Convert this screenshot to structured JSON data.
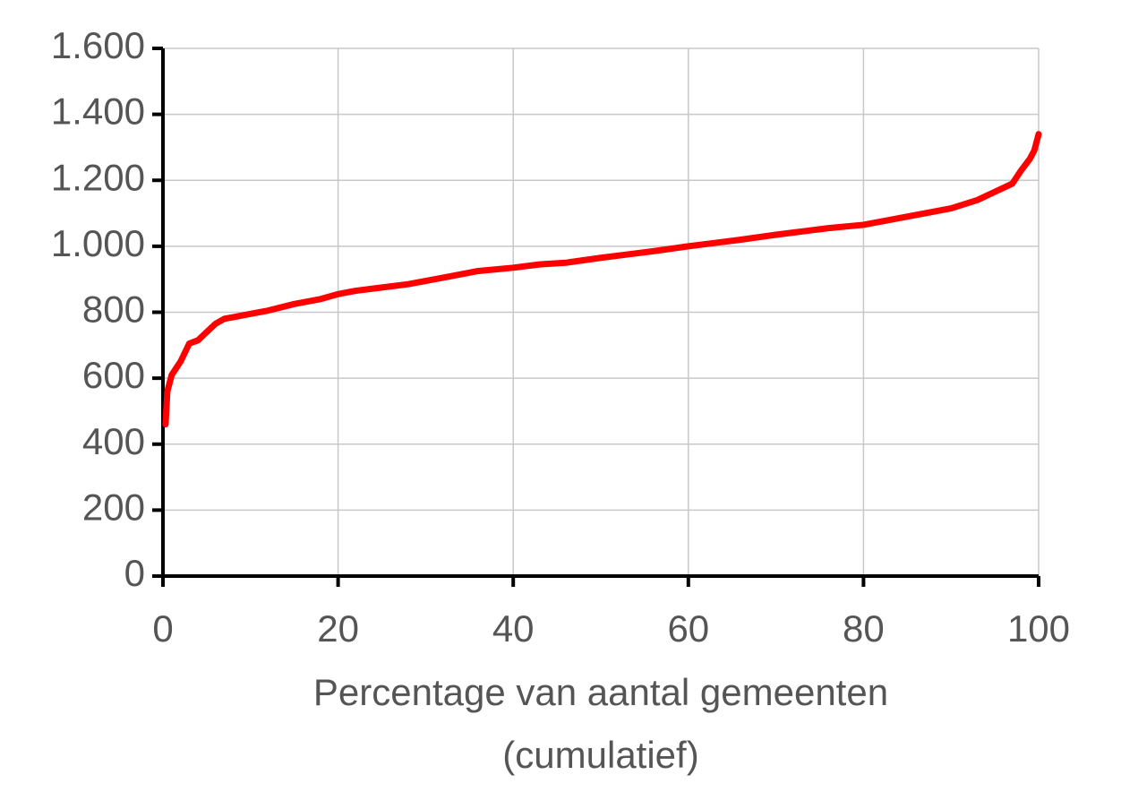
{
  "chart_data": {
    "type": "line",
    "x_label": [
      "Percentage van aantal gemeenten",
      "(cumulatief)"
    ],
    "x": [
      0.3,
      0.5,
      1,
      2,
      3,
      4,
      5,
      6,
      7,
      8,
      10,
      12,
      15,
      18,
      20,
      22,
      25,
      28,
      30,
      33,
      36,
      40,
      43,
      46,
      50,
      53,
      56,
      60,
      63,
      66,
      70,
      73,
      76,
      80,
      83,
      86,
      90,
      93,
      95,
      97,
      98,
      99,
      99.5,
      100
    ],
    "values": [
      460,
      560,
      610,
      650,
      705,
      715,
      740,
      765,
      780,
      785,
      795,
      805,
      825,
      840,
      855,
      865,
      875,
      885,
      895,
      910,
      925,
      935,
      945,
      950,
      965,
      975,
      985,
      1000,
      1010,
      1020,
      1035,
      1045,
      1055,
      1065,
      1080,
      1095,
      1115,
      1140,
      1165,
      1190,
      1230,
      1265,
      1290,
      1340
    ],
    "color": "#ff0000",
    "xlim": [
      0,
      100
    ],
    "xticks": [
      0,
      20,
      40,
      60,
      80,
      100
    ],
    "ylim": [
      0,
      1600
    ],
    "yticks": [
      0,
      200,
      400,
      600,
      800,
      {
        "value": 1000,
        "label": "1.000"
      },
      {
        "value": 1200,
        "label": "1.200"
      },
      {
        "value": 1400,
        "label": "1.400"
      },
      {
        "value": 1600,
        "label": "1.600"
      }
    ],
    "grid": true
  }
}
